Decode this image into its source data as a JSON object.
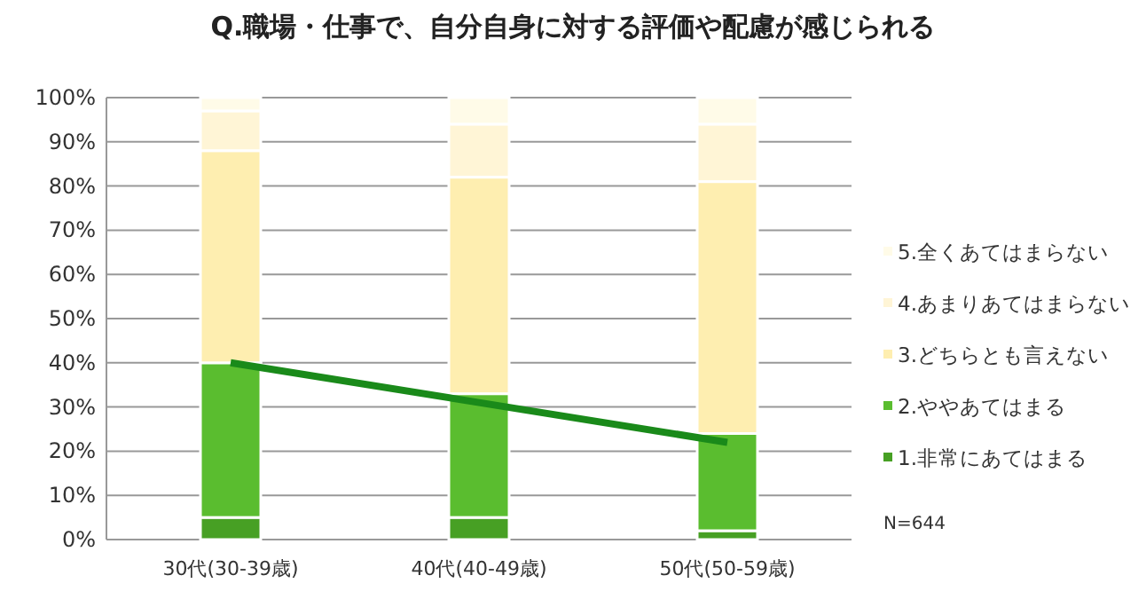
{
  "chart_data": {
    "type": "bar",
    "stacked": true,
    "title": "Q.職場・仕事で、自分自身に対する評価や配慮が感じられる",
    "categories": [
      "30代(30-39歳)",
      "40代(40-49歳)",
      "50代(50-59歳)"
    ],
    "series": [
      {
        "name": "1.非常にあてはまる",
        "color": "#47a024",
        "values": [
          5,
          5,
          2
        ]
      },
      {
        "name": "2.ややあてはまる",
        "color": "#5abd2f",
        "values": [
          35,
          28,
          22
        ]
      },
      {
        "name": "3.どちらとも言えない",
        "color": "#feeeb0",
        "values": [
          48,
          49,
          57
        ]
      },
      {
        "name": "4.あまりあてはまらない",
        "color": "#fff5d6",
        "values": [
          9,
          12,
          13
        ]
      },
      {
        "name": "5.全くあてはまらない",
        "color": "#fffbe8",
        "values": [
          3,
          6,
          6
        ]
      },
      {
        "type": "line",
        "color": "#1a8a1a",
        "values": [
          40,
          31,
          22
        ]
      }
    ],
    "ylim": [
      0,
      100
    ],
    "yticks": [
      {
        "value": 0,
        "label": "0%"
      },
      {
        "value": 10,
        "label": "10%"
      },
      {
        "value": 20,
        "label": "20%"
      },
      {
        "value": 30,
        "label": "30%"
      },
      {
        "value": 40,
        "label": "40%"
      },
      {
        "value": 50,
        "label": "50%"
      },
      {
        "value": 60,
        "label": "60%"
      },
      {
        "value": 70,
        "label": "70%"
      },
      {
        "value": 80,
        "label": "80%"
      },
      {
        "value": 90,
        "label": "90%"
      },
      {
        "value": 100,
        "label": "100%"
      }
    ],
    "grid": "y",
    "legend": "right",
    "annotations": [
      "N=644"
    ]
  }
}
